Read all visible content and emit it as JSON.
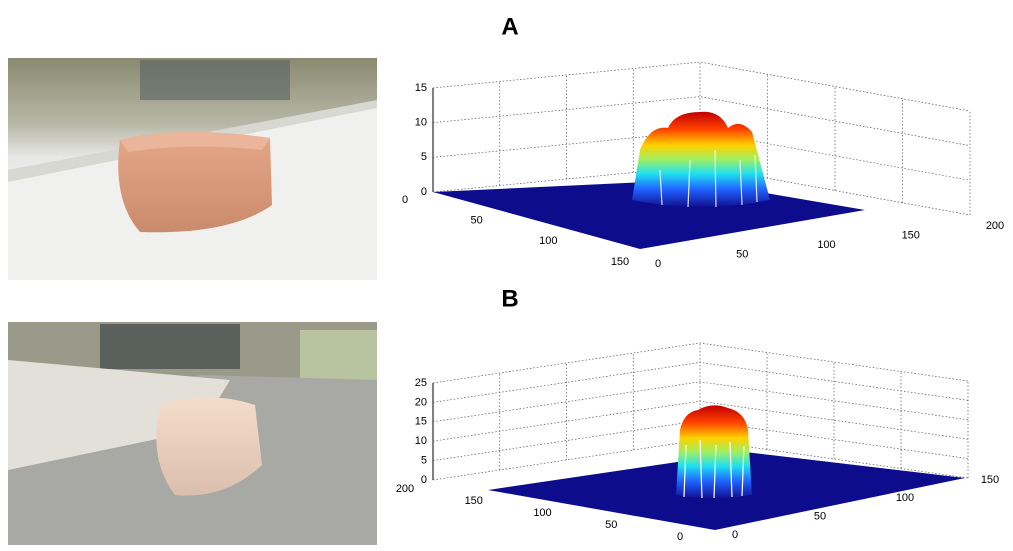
{
  "panels": [
    {
      "label": "A",
      "z_ticks": [
        0,
        5,
        10,
        15
      ],
      "left_ticks": [
        0,
        50,
        100,
        150
      ],
      "right_ticks": [
        0,
        50,
        100,
        150,
        200
      ]
    },
    {
      "label": "B",
      "z_ticks": [
        0,
        5,
        10,
        15,
        20,
        25
      ],
      "left_ticks": [
        200,
        150,
        100,
        50,
        0
      ],
      "right_ticks": [
        0,
        50,
        100,
        150
      ]
    }
  ]
}
